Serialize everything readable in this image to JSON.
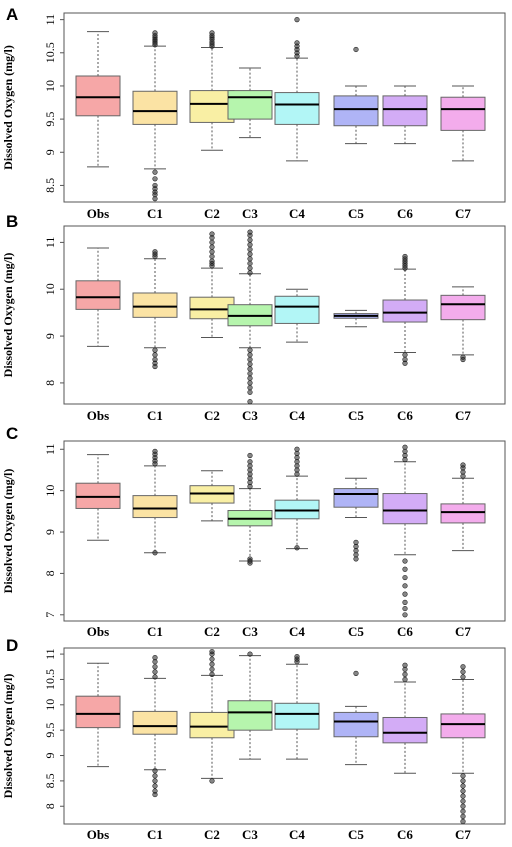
{
  "chart_data": [
    {
      "type": "box",
      "panel": "A",
      "ylabel": "Dissolved Oxygen (mg/l)",
      "ylim": [
        8.25,
        11.1
      ],
      "yticks": [
        8.5,
        9,
        9.5,
        10,
        10.5,
        11
      ],
      "ytick_labels": [
        "8.5",
        "9",
        "9.5",
        "10",
        "10.5",
        "11"
      ],
      "categories": [
        "Obs",
        "C1",
        "C2",
        "C3",
        "C4",
        "C5",
        "C6",
        "C7"
      ],
      "colors": [
        "#f6a7a7",
        "#fbe3a4",
        "#f9efa4",
        "#b6f5ad",
        "#b2f6f6",
        "#afb4f6",
        "#d3acf6",
        "#f3acec"
      ],
      "boxes": [
        {
          "whislo": 8.78,
          "q1": 9.55,
          "med": 9.83,
          "q3": 10.15,
          "whishi": 10.82,
          "outliers": []
        },
        {
          "whislo": 8.75,
          "q1": 9.42,
          "med": 9.62,
          "q3": 9.92,
          "whishi": 10.6,
          "outliers": [
            10.62,
            10.65,
            10.68,
            10.7,
            10.73,
            10.76,
            10.8,
            8.7,
            8.6,
            8.5,
            8.45,
            8.4,
            8.36,
            8.3
          ]
        },
        {
          "whislo": 9.03,
          "q1": 9.45,
          "med": 9.73,
          "q3": 9.93,
          "whishi": 10.58,
          "outliers": [
            10.6,
            10.63,
            10.66,
            10.7,
            10.73,
            10.76,
            10.8
          ]
        },
        {
          "whislo": 9.22,
          "q1": 9.5,
          "med": 9.83,
          "q3": 9.93,
          "whishi": 10.27,
          "outliers": []
        },
        {
          "whislo": 8.87,
          "q1": 9.42,
          "med": 9.72,
          "q3": 9.9,
          "whishi": 10.42,
          "outliers": [
            10.45,
            10.5,
            10.55,
            10.6,
            10.65,
            11.0
          ]
        },
        {
          "whislo": 9.13,
          "q1": 9.4,
          "med": 9.65,
          "q3": 9.85,
          "whishi": 10.0,
          "outliers": [
            10.55
          ]
        },
        {
          "whislo": 9.13,
          "q1": 9.4,
          "med": 9.65,
          "q3": 9.85,
          "whishi": 10.0,
          "outliers": []
        },
        {
          "whislo": 8.87,
          "q1": 9.33,
          "med": 9.65,
          "q3": 9.83,
          "whishi": 10.0,
          "outliers": []
        }
      ]
    },
    {
      "type": "box",
      "panel": "B",
      "ylabel": "Dissolved Oxygen (mg/l)",
      "ylim": [
        7.55,
        11.35
      ],
      "yticks": [
        8,
        9,
        10,
        11
      ],
      "ytick_labels": [
        "8",
        "9",
        "10",
        "11"
      ],
      "categories": [
        "Obs",
        "C1",
        "C2",
        "C3",
        "C4",
        "C5",
        "C6",
        "C7"
      ],
      "colors": [
        "#f6a7a7",
        "#fbe3a4",
        "#f9efa4",
        "#b6f5ad",
        "#b2f6f6",
        "#afb4f6",
        "#d3acf6",
        "#f3acec"
      ],
      "boxes": [
        {
          "whislo": 8.78,
          "q1": 9.57,
          "med": 9.83,
          "q3": 10.18,
          "whishi": 10.88,
          "outliers": []
        },
        {
          "whislo": 8.75,
          "q1": 9.4,
          "med": 9.63,
          "q3": 9.92,
          "whishi": 10.65,
          "outliers": [
            10.7,
            10.75,
            10.8,
            8.7,
            8.6,
            8.5,
            8.42,
            8.35
          ]
        },
        {
          "whislo": 8.97,
          "q1": 9.37,
          "med": 9.57,
          "q3": 9.83,
          "whishi": 10.45,
          "outliers": [
            10.5,
            10.55,
            10.6,
            10.7,
            10.8,
            10.9,
            11.0,
            11.1,
            11.18
          ]
        },
        {
          "whislo": 8.75,
          "q1": 9.22,
          "med": 9.43,
          "q3": 9.67,
          "whishi": 10.33,
          "outliers": [
            10.35,
            10.45,
            10.55,
            10.65,
            10.75,
            10.85,
            10.95,
            11.05,
            11.15,
            11.22,
            8.7,
            8.6,
            8.5,
            8.4,
            8.3,
            8.2,
            8.1,
            8.0,
            7.9,
            7.8,
            7.6
          ]
        },
        {
          "whislo": 8.87,
          "q1": 9.27,
          "med": 9.63,
          "q3": 9.85,
          "whishi": 10.0,
          "outliers": []
        },
        {
          "whislo": 9.2,
          "q1": 9.38,
          "med": 9.43,
          "q3": 9.48,
          "whishi": 9.55,
          "outliers": []
        },
        {
          "whislo": 8.65,
          "q1": 9.3,
          "med": 9.5,
          "q3": 9.77,
          "whishi": 10.43,
          "outliers": [
            10.45,
            10.5,
            10.55,
            10.6,
            10.65,
            10.7,
            8.6,
            8.5,
            8.42
          ]
        },
        {
          "whislo": 8.6,
          "q1": 9.35,
          "med": 9.68,
          "q3": 9.87,
          "whishi": 10.05,
          "outliers": [
            8.55,
            8.5
          ]
        }
      ]
    },
    {
      "type": "box",
      "panel": "C",
      "ylabel": "Dissolved Oxygen (mg/l)",
      "ylim": [
        6.85,
        11.2
      ],
      "yticks": [
        7,
        8,
        9,
        10,
        11
      ],
      "ytick_labels": [
        "7",
        "8",
        "9",
        "10",
        "11"
      ],
      "categories": [
        "Obs",
        "C1",
        "C2",
        "C3",
        "C4",
        "C5",
        "C6",
        "C7"
      ],
      "colors": [
        "#f6a7a7",
        "#fbe3a4",
        "#f9efa4",
        "#b6f5ad",
        "#b2f6f6",
        "#afb4f6",
        "#d3acf6",
        "#f3acec"
      ],
      "boxes": [
        {
          "whislo": 8.8,
          "q1": 9.57,
          "med": 9.85,
          "q3": 10.18,
          "whishi": 10.87,
          "outliers": []
        },
        {
          "whislo": 8.5,
          "q1": 9.35,
          "med": 9.57,
          "q3": 9.88,
          "whishi": 10.6,
          "outliers": [
            10.65,
            10.72,
            10.8,
            10.88,
            10.95,
            8.5
          ]
        },
        {
          "whislo": 9.27,
          "q1": 9.7,
          "med": 9.93,
          "q3": 10.12,
          "whishi": 10.48,
          "outliers": []
        },
        {
          "whislo": 8.3,
          "q1": 9.15,
          "med": 9.32,
          "q3": 9.52,
          "whishi": 10.05,
          "outliers": [
            10.1,
            10.2,
            10.3,
            10.4,
            10.5,
            10.6,
            10.7,
            10.85,
            8.25,
            8.3,
            8.35
          ]
        },
        {
          "whislo": 8.6,
          "q1": 9.32,
          "med": 9.52,
          "q3": 9.77,
          "whishi": 10.35,
          "outliers": [
            10.4,
            10.5,
            10.6,
            10.7,
            10.8,
            10.9,
            11.0,
            8.62
          ]
        },
        {
          "whislo": 9.35,
          "q1": 9.6,
          "med": 9.92,
          "q3": 10.05,
          "whishi": 10.3,
          "outliers": [
            8.75,
            8.65,
            8.55,
            8.45,
            8.35
          ]
        },
        {
          "whislo": 8.45,
          "q1": 9.2,
          "med": 9.52,
          "q3": 9.93,
          "whishi": 10.7,
          "outliers": [
            10.75,
            10.85,
            10.95,
            11.05,
            8.3,
            8.1,
            7.9,
            7.7,
            7.5,
            7.3,
            7.15,
            7.0
          ]
        },
        {
          "whislo": 8.55,
          "q1": 9.22,
          "med": 9.48,
          "q3": 9.68,
          "whishi": 10.3,
          "outliers": [
            10.35,
            10.45,
            10.55,
            10.62
          ]
        }
      ]
    },
    {
      "type": "box",
      "panel": "D",
      "ylabel": "Dissolved Oxygen (mg/l)",
      "ylim": [
        7.65,
        11.12
      ],
      "yticks": [
        8,
        8.5,
        9,
        9.5,
        10,
        10.5,
        11
      ],
      "ytick_labels": [
        "8",
        "8.5",
        "9",
        "9.5",
        "10",
        "10.5",
        "11"
      ],
      "categories": [
        "Obs",
        "C1",
        "C2",
        "C3",
        "C4",
        "C5",
        "C6",
        "C7"
      ],
      "colors": [
        "#f6a7a7",
        "#fbe3a4",
        "#f9efa4",
        "#b6f5ad",
        "#b2f6f6",
        "#afb4f6",
        "#d3acf6",
        "#f3acec"
      ],
      "boxes": [
        {
          "whislo": 8.78,
          "q1": 9.55,
          "med": 9.82,
          "q3": 10.17,
          "whishi": 10.82,
          "outliers": []
        },
        {
          "whislo": 8.72,
          "q1": 9.42,
          "med": 9.58,
          "q3": 9.87,
          "whishi": 10.52,
          "outliers": [
            10.55,
            10.65,
            10.75,
            10.85,
            10.93,
            8.7,
            8.6,
            8.5,
            8.4,
            8.3,
            8.23
          ]
        },
        {
          "whislo": 8.55,
          "q1": 9.35,
          "med": 9.57,
          "q3": 9.85,
          "whishi": 10.58,
          "outliers": [
            10.6,
            10.7,
            10.8,
            10.9,
            11.0,
            11.05,
            8.5
          ]
        },
        {
          "whislo": 8.93,
          "q1": 9.5,
          "med": 9.85,
          "q3": 10.08,
          "whishi": 10.97,
          "outliers": [
            11.0
          ]
        },
        {
          "whislo": 8.93,
          "q1": 9.52,
          "med": 9.82,
          "q3": 10.03,
          "whishi": 10.8,
          "outliers": [
            10.85,
            10.9,
            10.95
          ]
        },
        {
          "whislo": 8.82,
          "q1": 9.37,
          "med": 9.67,
          "q3": 9.85,
          "whishi": 9.97,
          "outliers": [
            10.62
          ]
        },
        {
          "whislo": 8.65,
          "q1": 9.25,
          "med": 9.45,
          "q3": 9.75,
          "whishi": 10.45,
          "outliers": [
            10.5,
            10.6,
            10.7,
            10.78
          ]
        },
        {
          "whislo": 8.65,
          "q1": 9.35,
          "med": 9.62,
          "q3": 9.82,
          "whishi": 10.5,
          "outliers": [
            10.55,
            10.65,
            10.75,
            8.6,
            8.5,
            8.4,
            8.3,
            8.2,
            8.1,
            8.0,
            7.9,
            7.8,
            7.7
          ]
        }
      ]
    }
  ]
}
